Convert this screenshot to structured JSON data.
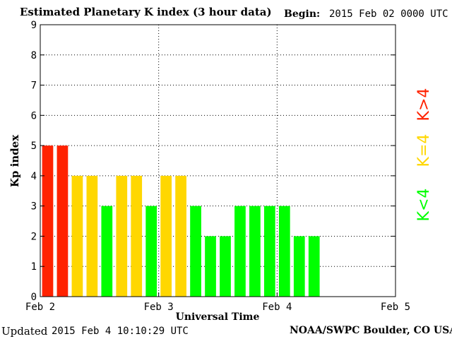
{
  "header": {
    "title": "Estimated Planetary K index (3 hour data)",
    "begin_label": "Begin:",
    "begin_value": "2015 Feb 02 0000 UTC"
  },
  "footer": {
    "updated_label": "Updated",
    "updated_value": "2015 Feb  4 10:10:29 UTC",
    "credit": "NOAA/SWPC Boulder, CO USA"
  },
  "legend": [
    {
      "label": "K<4",
      "color": "#00ff00"
    },
    {
      "label": "K=4",
      "color": "#ffd700"
    },
    {
      "label": "K>4",
      "color": "#ff2200"
    }
  ],
  "colors": {
    "below_4": "#00ff00",
    "equal_4": "#ffd700",
    "above_4": "#ff2200"
  },
  "chart_data": {
    "type": "bar",
    "xlabel": "Universal Time",
    "ylabel": "Kp index",
    "ylim": [
      0,
      9
    ],
    "yticks": [
      "0",
      "1",
      "2",
      "3",
      "4",
      "5",
      "6",
      "7",
      "8",
      "9"
    ],
    "xticks": [
      "Feb 2",
      "Feb 3",
      "Feb 4",
      "Feb 5"
    ],
    "grid": true,
    "bars_per_day": 8,
    "values": [
      5,
      5,
      4,
      4,
      3,
      4,
      4,
      3,
      4,
      4,
      3,
      2,
      2,
      3,
      3,
      3,
      3,
      2,
      2
    ]
  }
}
